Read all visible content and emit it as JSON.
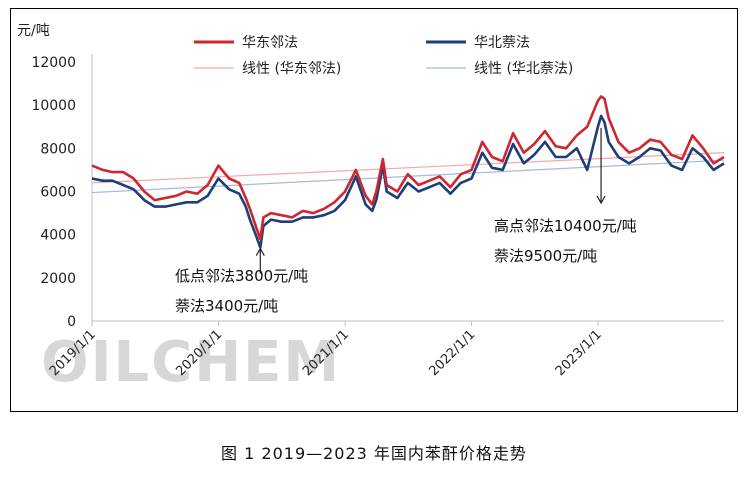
{
  "chart_data": {
    "type": "line",
    "ylabel": "元/吨",
    "ylim": [
      0,
      12000
    ],
    "y_ticks": [
      0,
      2000,
      4000,
      6000,
      8000,
      10000,
      12000
    ],
    "x_tick_labels": [
      "2019/1/1",
      "2020/1/1",
      "2021/1/1",
      "2022/1/1",
      "2023/1/1"
    ],
    "x_range": [
      "2019-01-01",
      "2023-12-31"
    ],
    "grid": false,
    "legend_position": "top",
    "series": [
      {
        "name": "华东邻法",
        "color": "#d0262d",
        "points": [
          [
            "2019-01-01",
            7200
          ],
          [
            "2019-02-01",
            7000
          ],
          [
            "2019-03-01",
            6900
          ],
          [
            "2019-04-01",
            6900
          ],
          [
            "2019-05-01",
            6600
          ],
          [
            "2019-06-01",
            6000
          ],
          [
            "2019-07-01",
            5600
          ],
          [
            "2019-08-01",
            5700
          ],
          [
            "2019-09-01",
            5800
          ],
          [
            "2019-10-01",
            6000
          ],
          [
            "2019-11-01",
            5900
          ],
          [
            "2019-12-01",
            6300
          ],
          [
            "2020-01-01",
            7200
          ],
          [
            "2020-02-01",
            6600
          ],
          [
            "2020-03-01",
            6400
          ],
          [
            "2020-03-20",
            5700
          ],
          [
            "2020-04-01",
            5200
          ],
          [
            "2020-04-20",
            4300
          ],
          [
            "2020-05-01",
            3800
          ],
          [
            "2020-05-10",
            4800
          ],
          [
            "2020-06-01",
            5000
          ],
          [
            "2020-07-01",
            4900
          ],
          [
            "2020-08-01",
            4800
          ],
          [
            "2020-09-01",
            5100
          ],
          [
            "2020-10-01",
            5000
          ],
          [
            "2020-11-01",
            5200
          ],
          [
            "2020-12-01",
            5500
          ],
          [
            "2021-01-01",
            6000
          ],
          [
            "2021-02-01",
            7000
          ],
          [
            "2021-03-01",
            5800
          ],
          [
            "2021-03-20",
            5400
          ],
          [
            "2021-04-01",
            6000
          ],
          [
            "2021-04-20",
            7500
          ],
          [
            "2021-05-01",
            6300
          ],
          [
            "2021-06-01",
            6000
          ],
          [
            "2021-07-01",
            6800
          ],
          [
            "2021-08-01",
            6300
          ],
          [
            "2021-09-01",
            6500
          ],
          [
            "2021-10-01",
            6700
          ],
          [
            "2021-11-01",
            6200
          ],
          [
            "2021-12-01",
            6800
          ],
          [
            "2022-01-01",
            7000
          ],
          [
            "2022-02-01",
            8300
          ],
          [
            "2022-03-01",
            7600
          ],
          [
            "2022-04-01",
            7400
          ],
          [
            "2022-05-01",
            8700
          ],
          [
            "2022-06-01",
            7800
          ],
          [
            "2022-07-01",
            8200
          ],
          [
            "2022-08-01",
            8800
          ],
          [
            "2022-09-01",
            8100
          ],
          [
            "2022-10-01",
            8000
          ],
          [
            "2022-11-01",
            8600
          ],
          [
            "2022-12-01",
            9000
          ],
          [
            "2023-01-01",
            10200
          ],
          [
            "2023-01-10",
            10400
          ],
          [
            "2023-01-20",
            10300
          ],
          [
            "2023-02-01",
            9400
          ],
          [
            "2023-03-01",
            8300
          ],
          [
            "2023-04-01",
            7800
          ],
          [
            "2023-05-01",
            8000
          ],
          [
            "2023-06-01",
            8400
          ],
          [
            "2023-07-01",
            8300
          ],
          [
            "2023-08-01",
            7700
          ],
          [
            "2023-09-01",
            7500
          ],
          [
            "2023-10-01",
            8600
          ],
          [
            "2023-11-01",
            8000
          ],
          [
            "2023-12-01",
            7300
          ],
          [
            "2023-12-31",
            7600
          ]
        ]
      },
      {
        "name": "华北萘法",
        "color": "#1f3d7a",
        "points": [
          [
            "2019-01-01",
            6600
          ],
          [
            "2019-02-01",
            6500
          ],
          [
            "2019-03-01",
            6500
          ],
          [
            "2019-04-01",
            6300
          ],
          [
            "2019-05-01",
            6100
          ],
          [
            "2019-06-01",
            5600
          ],
          [
            "2019-07-01",
            5300
          ],
          [
            "2019-08-01",
            5300
          ],
          [
            "2019-09-01",
            5400
          ],
          [
            "2019-10-01",
            5500
          ],
          [
            "2019-11-01",
            5500
          ],
          [
            "2019-12-01",
            5800
          ],
          [
            "2020-01-01",
            6600
          ],
          [
            "2020-02-01",
            6100
          ],
          [
            "2020-03-01",
            5900
          ],
          [
            "2020-03-20",
            5300
          ],
          [
            "2020-04-01",
            4700
          ],
          [
            "2020-04-20",
            3900
          ],
          [
            "2020-05-01",
            3400
          ],
          [
            "2020-05-10",
            4400
          ],
          [
            "2020-06-01",
            4700
          ],
          [
            "2020-07-01",
            4600
          ],
          [
            "2020-08-01",
            4600
          ],
          [
            "2020-09-01",
            4800
          ],
          [
            "2020-10-01",
            4800
          ],
          [
            "2020-11-01",
            4900
          ],
          [
            "2020-12-01",
            5100
          ],
          [
            "2021-01-01",
            5600
          ],
          [
            "2021-02-01",
            6700
          ],
          [
            "2021-03-01",
            5400
          ],
          [
            "2021-03-20",
            5100
          ],
          [
            "2021-04-01",
            5600
          ],
          [
            "2021-04-20",
            7200
          ],
          [
            "2021-05-01",
            6000
          ],
          [
            "2021-06-01",
            5700
          ],
          [
            "2021-07-01",
            6400
          ],
          [
            "2021-08-01",
            6000
          ],
          [
            "2021-09-01",
            6200
          ],
          [
            "2021-10-01",
            6400
          ],
          [
            "2021-11-01",
            5900
          ],
          [
            "2021-12-01",
            6400
          ],
          [
            "2022-01-01",
            6600
          ],
          [
            "2022-02-01",
            7800
          ],
          [
            "2022-03-01",
            7100
          ],
          [
            "2022-04-01",
            7000
          ],
          [
            "2022-05-01",
            8200
          ],
          [
            "2022-06-01",
            7300
          ],
          [
            "2022-07-01",
            7700
          ],
          [
            "2022-08-01",
            8300
          ],
          [
            "2022-09-01",
            7600
          ],
          [
            "2022-10-01",
            7600
          ],
          [
            "2022-11-01",
            8000
          ],
          [
            "2022-12-01",
            7000
          ],
          [
            "2023-01-01",
            9000
          ],
          [
            "2023-01-10",
            9500
          ],
          [
            "2023-01-20",
            9200
          ],
          [
            "2023-02-01",
            8300
          ],
          [
            "2023-03-01",
            7600
          ],
          [
            "2023-04-01",
            7300
          ],
          [
            "2023-05-01",
            7600
          ],
          [
            "2023-06-01",
            8000
          ],
          [
            "2023-07-01",
            7900
          ],
          [
            "2023-08-01",
            7200
          ],
          [
            "2023-09-01",
            7000
          ],
          [
            "2023-10-01",
            8000
          ],
          [
            "2023-11-01",
            7600
          ],
          [
            "2023-12-01",
            7000
          ],
          [
            "2023-12-31",
            7300
          ]
        ]
      }
    ],
    "trendlines": [
      {
        "name": "线性 (华东邻法)",
        "color": "#f2a9a4",
        "from": 6400,
        "to": 7800
      },
      {
        "name": "线性 (华北萘法)",
        "color": "#a9b7de",
        "from": 5950,
        "to": 7450
      }
    ],
    "annotations": [
      {
        "lines": [
          "低点邻法3800元/吨",
          "萘法3400元/吨"
        ],
        "at": "2020-05-01",
        "value": 3400
      },
      {
        "lines": [
          "高点邻法10400元/吨",
          "萘法9500元/吨"
        ],
        "at": "2023-01-10",
        "value": 9500
      }
    ],
    "watermark": "OILCHEM"
  },
  "caption": "图 1 2019—2023 年国内苯酐价格走势"
}
